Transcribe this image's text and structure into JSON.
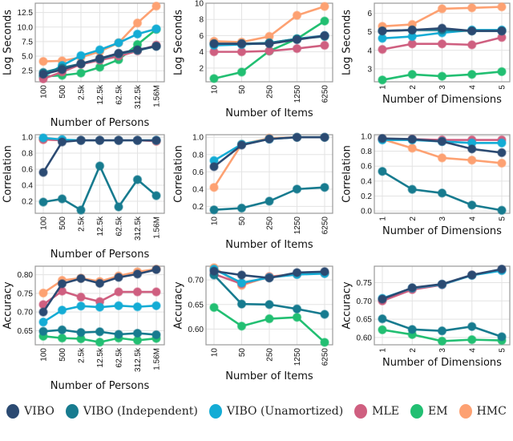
{
  "legend": [
    {
      "name": "VIBO",
      "color": "#2b4a72"
    },
    {
      "name": "VIBO (Independent)",
      "color": "#177b8f"
    },
    {
      "name": "VIBO (Unamortized)",
      "color": "#14acd5"
    },
    {
      "name": "MLE",
      "color": "#cf5f80"
    },
    {
      "name": "EM",
      "color": "#22bf72"
    },
    {
      "name": "HMC",
      "color": "#fda172"
    }
  ],
  "chart_data": [
    {
      "type": "line",
      "xlabel": "Number of Persons",
      "ylabel": "Log Seconds",
      "categories": [
        "100",
        "500",
        "2.5k",
        "12.5k",
        "62.5k",
        "312.5k",
        "1.56M"
      ],
      "ylim": [
        0.6,
        14.1
      ],
      "yticks": [
        "2.5",
        "5.0",
        "7.5",
        "10.0",
        "12.5"
      ],
      "grid": true,
      "series": [
        {
          "name": "HMC",
          "values": [
            4.1,
            4.2,
            4.8,
            5.8,
            7.3,
            10.7,
            13.6
          ]
        },
        {
          "name": "EM",
          "values": [
            1.5,
            1.7,
            2.1,
            3.1,
            4.4,
            7.0,
            9.6
          ]
        },
        {
          "name": "VIBO (Unamortized)",
          "values": [
            1.5,
            3.4,
            5.1,
            6.1,
            7.3,
            8.8,
            9.7
          ]
        },
        {
          "name": "MLE",
          "values": [
            1.1,
            2.3,
            3.6,
            4.3,
            5.0,
            5.9,
            6.9
          ]
        },
        {
          "name": "VIBO (Independent)",
          "values": [
            2.2,
            3.0,
            3.7,
            4.5,
            5.4,
            6.0,
            6.7
          ]
        },
        {
          "name": "VIBO",
          "values": [
            1.9,
            2.7,
            3.7,
            4.6,
            5.5,
            6.1,
            6.7
          ]
        }
      ]
    },
    {
      "type": "line",
      "xlabel": "Number of Items",
      "ylabel": "Log Seconds",
      "categories": [
        "10",
        "50",
        "250",
        "1250",
        "6250"
      ],
      "ylim": [
        0.3,
        10
      ],
      "yticks": [
        "2",
        "4",
        "6",
        "8",
        "10"
      ],
      "grid": true,
      "series": [
        {
          "name": "HMC",
          "values": [
            5.3,
            5.2,
            5.9,
            8.5,
            9.6
          ]
        },
        {
          "name": "EM",
          "values": [
            0.7,
            1.5,
            4.1,
            5.6,
            7.8
          ]
        },
        {
          "name": "MLE",
          "values": [
            4.0,
            4.0,
            4.1,
            4.4,
            4.8
          ]
        },
        {
          "name": "VIBO (Unamortized)",
          "values": [
            4.8,
            4.9,
            5.1,
            5.6,
            6.0
          ]
        },
        {
          "name": "VIBO (Independent)",
          "values": [
            5.0,
            5.0,
            5.1,
            5.6,
            5.9
          ]
        },
        {
          "name": "VIBO",
          "values": [
            5.0,
            5.0,
            5.0,
            5.5,
            6.0
          ]
        }
      ]
    },
    {
      "type": "line",
      "xlabel": "Number of Dimensions",
      "ylabel": "Log Seconds",
      "categories": [
        "1",
        "2",
        "3",
        "4",
        "5"
      ],
      "ylim": [
        2.3,
        6.55
      ],
      "yticks": [
        "3",
        "4",
        "5",
        "6"
      ],
      "grid": true,
      "series": [
        {
          "name": "HMC",
          "values": [
            5.3,
            5.4,
            6.25,
            6.3,
            6.35
          ]
        },
        {
          "name": "EM",
          "values": [
            2.4,
            2.7,
            2.6,
            2.7,
            2.85
          ]
        },
        {
          "name": "MLE",
          "values": [
            4.05,
            4.35,
            4.35,
            4.3,
            4.7
          ]
        },
        {
          "name": "VIBO (Unamortized)",
          "values": [
            4.65,
            4.75,
            4.95,
            5.1,
            5.1
          ]
        },
        {
          "name": "VIBO (Independent)",
          "values": [
            5.05,
            5.1,
            5.1,
            5.05,
            5.05
          ]
        },
        {
          "name": "VIBO",
          "values": [
            5.05,
            5.1,
            5.2,
            5.05,
            5.05
          ]
        }
      ]
    },
    {
      "type": "line",
      "xlabel": "Number of Persons",
      "ylabel": "Correlation",
      "categories": [
        "100",
        "500",
        "2.5k",
        "12.5k",
        "62.5k",
        "312.5k",
        "1.56M"
      ],
      "ylim": [
        0.05,
        1.03
      ],
      "yticks": [
        "0.2",
        "0.4",
        "0.6",
        "0.8",
        "1.0"
      ],
      "grid": true,
      "series": [
        {
          "name": "HMC",
          "values": [
            0.97,
            0.96,
            0.96,
            0.96,
            0.96,
            0.96,
            0.95
          ]
        },
        {
          "name": "MLE",
          "values": [
            0.97,
            0.96,
            0.96,
            0.96,
            0.96,
            0.96,
            0.95
          ]
        },
        {
          "name": "VIBO (Unamortized)",
          "values": [
            0.99,
            0.97,
            0.96,
            0.96,
            0.96,
            0.96,
            0.96
          ]
        },
        {
          "name": "VIBO (Independent)",
          "values": [
            0.19,
            0.23,
            0.09,
            0.64,
            0.13,
            0.47,
            0.27
          ]
        },
        {
          "name": "VIBO",
          "values": [
            0.56,
            0.94,
            0.96,
            0.96,
            0.96,
            0.96,
            0.96
          ]
        }
      ]
    },
    {
      "type": "line",
      "xlabel": "Number of Items",
      "ylabel": "Correlation",
      "categories": [
        "10",
        "50",
        "250",
        "1250",
        "6250"
      ],
      "ylim": [
        0.12,
        1.03
      ],
      "yticks": [
        "0.2",
        "0.4",
        "0.6",
        "0.8",
        "1.0"
      ],
      "grid": true,
      "series": [
        {
          "name": "HMC",
          "values": [
            0.42,
            0.92,
            0.99,
            1.0,
            1.0
          ]
        },
        {
          "name": "VIBO (Unamortized)",
          "values": [
            0.73,
            0.92,
            0.98,
            1.0,
            1.0
          ]
        },
        {
          "name": "VIBO (Independent)",
          "values": [
            0.16,
            0.18,
            0.26,
            0.4,
            0.42
          ]
        },
        {
          "name": "VIBO",
          "values": [
            0.66,
            0.91,
            0.98,
            1.0,
            1.0
          ]
        }
      ]
    },
    {
      "type": "line",
      "xlabel": "Number of Dimensions",
      "ylabel": "Correlation",
      "categories": [
        "1",
        "2",
        "3",
        "4",
        "5"
      ],
      "ylim": [
        -0.03,
        1.02
      ],
      "yticks": [
        "0.0",
        "0.2",
        "0.4",
        "0.6",
        "0.8",
        "1.0"
      ],
      "grid": true,
      "series": [
        {
          "name": "HMC",
          "values": [
            0.96,
            0.84,
            0.71,
            0.68,
            0.64
          ]
        },
        {
          "name": "MLE",
          "values": [
            0.96,
            0.96,
            0.95,
            0.95,
            0.95
          ]
        },
        {
          "name": "VIBO (Unamortized)",
          "values": [
            0.95,
            0.95,
            0.93,
            0.91,
            0.91
          ]
        },
        {
          "name": "VIBO (Independent)",
          "values": [
            0.53,
            0.29,
            0.24,
            0.08,
            0.01
          ]
        },
        {
          "name": "VIBO",
          "values": [
            0.97,
            0.96,
            0.93,
            0.83,
            0.78
          ]
        }
      ]
    },
    {
      "type": "line",
      "xlabel": "Number of Persons",
      "ylabel": "Accuracy",
      "categories": [
        "100",
        "500",
        "2.5k",
        "12.5k",
        "62.5k",
        "312.5k",
        "1.56M"
      ],
      "ylim": [
        0.612,
        0.823
      ],
      "yticks": [
        "0.65",
        "0.70",
        "0.75",
        "0.80"
      ],
      "grid": true,
      "series": [
        {
          "name": "HMC",
          "values": [
            0.751,
            0.785,
            0.791,
            0.782,
            0.797,
            0.808,
            0.815
          ]
        },
        {
          "name": "MLE",
          "values": [
            0.72,
            0.756,
            0.74,
            0.728,
            0.754,
            0.754,
            0.754
          ]
        },
        {
          "name": "VIBO (Unamortized)",
          "values": [
            0.673,
            0.705,
            0.716,
            0.713,
            0.717,
            0.714,
            0.717
          ]
        },
        {
          "name": "EM",
          "values": [
            0.635,
            0.63,
            0.628,
            0.619,
            0.63,
            0.624,
            0.629
          ]
        },
        {
          "name": "VIBO (Independent)",
          "values": [
            0.648,
            0.652,
            0.645,
            0.647,
            0.64,
            0.643,
            0.639
          ]
        },
        {
          "name": "VIBO",
          "values": [
            0.7,
            0.776,
            0.79,
            0.777,
            0.793,
            0.802,
            0.814
          ]
        }
      ]
    },
    {
      "type": "line",
      "xlabel": "Number of Items",
      "ylabel": "Accuracy",
      "categories": [
        "10",
        "50",
        "250",
        "1250",
        "6250"
      ],
      "ylim": [
        0.568,
        0.728
      ],
      "yticks": [
        "0.60",
        "0.65",
        "0.70"
      ],
      "grid": true,
      "series": [
        {
          "name": "HMC",
          "values": [
            0.725,
            0.689,
            0.707,
            0.712,
            0.714
          ]
        },
        {
          "name": "MLE",
          "values": [
            0.712,
            0.692,
            0.706,
            0.712,
            0.714
          ]
        },
        {
          "name": "VIBO (Unamortized)",
          "values": [
            0.722,
            0.694,
            0.705,
            0.711,
            0.713
          ]
        },
        {
          "name": "EM",
          "values": [
            0.644,
            0.606,
            0.621,
            0.624,
            0.573
          ]
        },
        {
          "name": "VIBO (Independent)",
          "values": [
            0.71,
            0.651,
            0.65,
            0.641,
            0.63
          ]
        },
        {
          "name": "VIBO",
          "values": [
            0.718,
            0.71,
            0.704,
            0.715,
            0.717
          ]
        }
      ]
    },
    {
      "type": "line",
      "xlabel": "Number of Dimensions",
      "ylabel": "Accuracy",
      "categories": [
        "1",
        "2",
        "3",
        "4",
        "5"
      ],
      "ylim": [
        0.58,
        0.795
      ],
      "yticks": [
        "0.60",
        "0.65",
        "0.70",
        "0.75"
      ],
      "grid": true,
      "series": [
        {
          "name": "MLE",
          "values": [
            0.7,
            0.731,
            0.744,
            0.771,
            0.785
          ]
        },
        {
          "name": "VIBO (Unamortized)",
          "values": [
            0.707,
            0.735,
            0.745,
            0.77,
            0.783
          ]
        },
        {
          "name": "EM",
          "values": [
            0.621,
            0.608,
            0.59,
            0.594,
            0.592
          ]
        },
        {
          "name": "VIBO (Independent)",
          "values": [
            0.651,
            0.622,
            0.618,
            0.63,
            0.602
          ]
        },
        {
          "name": "VIBO",
          "values": [
            0.705,
            0.736,
            0.746,
            0.771,
            0.787
          ]
        }
      ]
    }
  ]
}
